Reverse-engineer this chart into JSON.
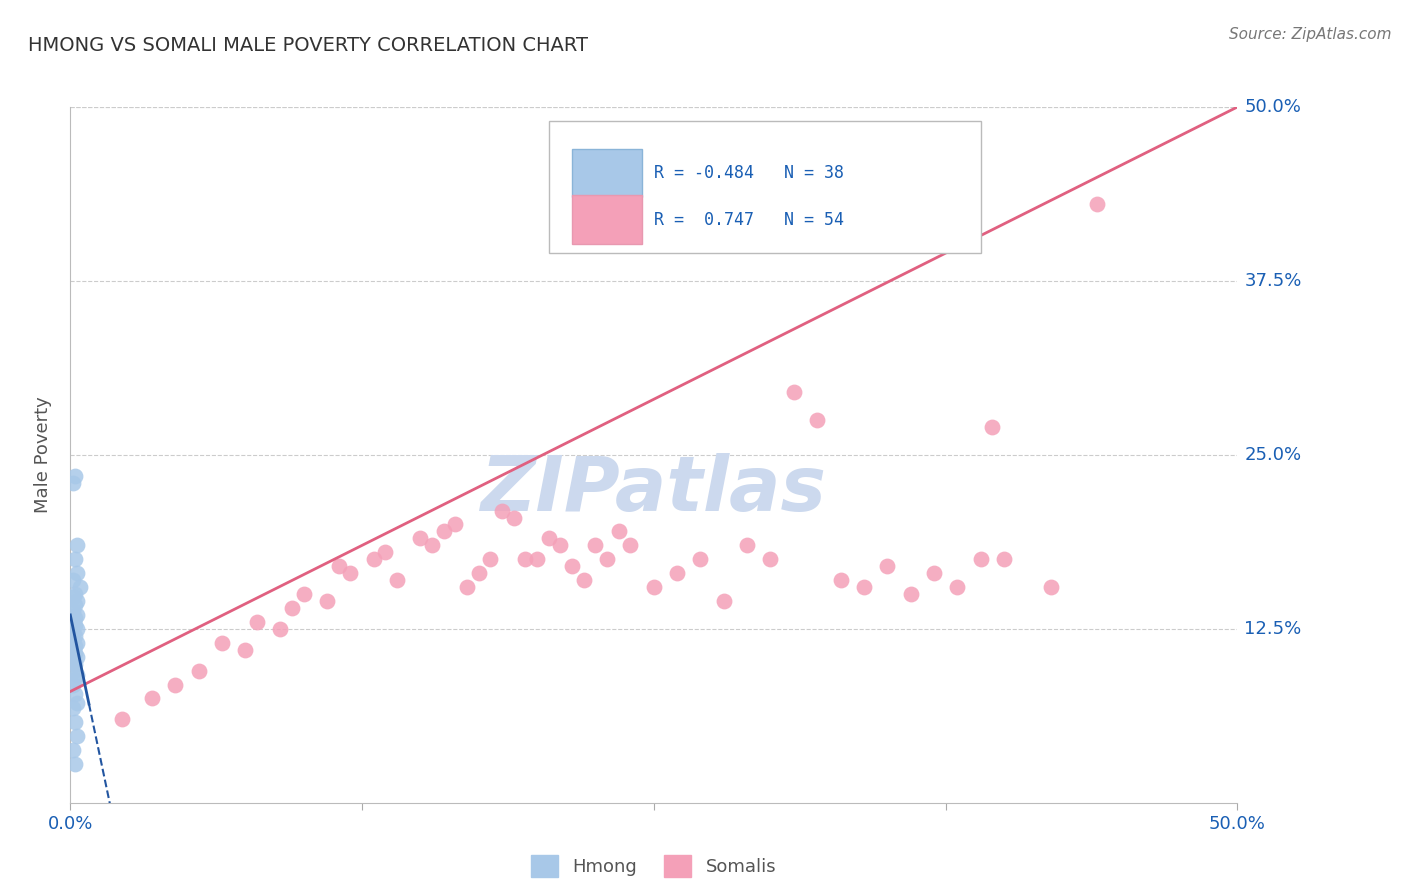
{
  "title": "HMONG VS SOMALI MALE POVERTY CORRELATION CHART",
  "source": "Source: ZipAtlas.com",
  "ylabel_label": "Male Poverty",
  "xlim": [
    0.0,
    0.5
  ],
  "ylim": [
    0.0,
    0.5
  ],
  "hmong_R": -0.484,
  "hmong_N": 38,
  "somali_R": 0.747,
  "somali_N": 54,
  "hmong_color": "#a8c8e8",
  "somali_color": "#f4a0b8",
  "hmong_line_color": "#2255a0",
  "somali_line_color": "#e06080",
  "legend_color": "#1a5fb4",
  "grid_color": "#cccccc",
  "watermark_color": "#ccd9ee",
  "somali_line_x0": 0.0,
  "somali_line_y0": 0.08,
  "somali_line_x1": 0.5,
  "somali_line_y1": 0.5,
  "hmong_line_solid_x0": 0.0,
  "hmong_line_solid_x1": 0.008,
  "hmong_line_dash_x1": 0.018,
  "hmong_line_y_at_0": 0.135,
  "hmong_line_slope": -8.0,
  "hmong_x": [
    0.002,
    0.001,
    0.003,
    0.002,
    0.003,
    0.001,
    0.004,
    0.002,
    0.001,
    0.003,
    0.002,
    0.001,
    0.003,
    0.002,
    0.001,
    0.002,
    0.003,
    0.001,
    0.002,
    0.001,
    0.003,
    0.002,
    0.001,
    0.002,
    0.003,
    0.001,
    0.002,
    0.001,
    0.003,
    0.002,
    0.001,
    0.002,
    0.003,
    0.001,
    0.002,
    0.003,
    0.001,
    0.002
  ],
  "hmong_y": [
    0.235,
    0.23,
    0.185,
    0.175,
    0.165,
    0.16,
    0.155,
    0.15,
    0.148,
    0.145,
    0.142,
    0.138,
    0.135,
    0.133,
    0.13,
    0.128,
    0.125,
    0.122,
    0.12,
    0.118,
    0.115,
    0.113,
    0.11,
    0.108,
    0.105,
    0.102,
    0.1,
    0.095,
    0.092,
    0.088,
    0.085,
    0.078,
    0.072,
    0.068,
    0.058,
    0.048,
    0.038,
    0.028
  ],
  "somali_x": [
    0.022,
    0.035,
    0.045,
    0.055,
    0.065,
    0.075,
    0.08,
    0.09,
    0.095,
    0.1,
    0.11,
    0.115,
    0.12,
    0.13,
    0.135,
    0.14,
    0.15,
    0.155,
    0.16,
    0.165,
    0.17,
    0.175,
    0.18,
    0.185,
    0.19,
    0.195,
    0.2,
    0.205,
    0.21,
    0.215,
    0.22,
    0.225,
    0.23,
    0.235,
    0.24,
    0.25,
    0.26,
    0.27,
    0.28,
    0.29,
    0.3,
    0.31,
    0.32,
    0.33,
    0.34,
    0.35,
    0.36,
    0.37,
    0.38,
    0.39,
    0.395,
    0.4,
    0.42,
    0.44
  ],
  "somali_y": [
    0.06,
    0.075,
    0.085,
    0.095,
    0.115,
    0.11,
    0.13,
    0.125,
    0.14,
    0.15,
    0.145,
    0.17,
    0.165,
    0.175,
    0.18,
    0.16,
    0.19,
    0.185,
    0.195,
    0.2,
    0.155,
    0.165,
    0.175,
    0.21,
    0.205,
    0.175,
    0.175,
    0.19,
    0.185,
    0.17,
    0.16,
    0.185,
    0.175,
    0.195,
    0.185,
    0.155,
    0.165,
    0.175,
    0.145,
    0.185,
    0.175,
    0.295,
    0.275,
    0.16,
    0.155,
    0.17,
    0.15,
    0.165,
    0.155,
    0.175,
    0.27,
    0.175,
    0.155,
    0.43
  ]
}
